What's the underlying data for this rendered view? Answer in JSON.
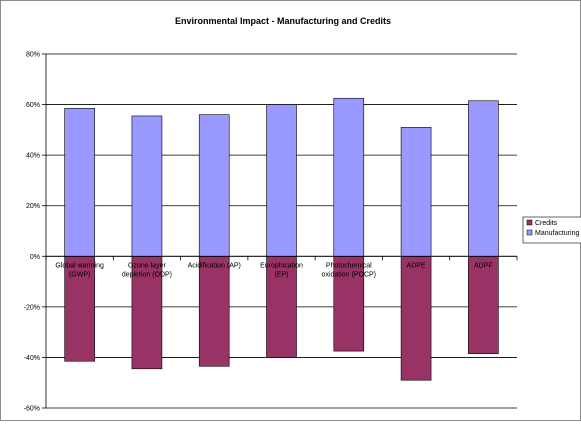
{
  "chart_data": {
    "type": "bar",
    "stacked": true,
    "title": "Environmental Impact - Manufacturing and Credits",
    "xlabel": "",
    "ylabel": "",
    "ylim": [
      -0.6,
      0.8
    ],
    "yticks": [
      -0.6,
      -0.4,
      -0.2,
      0,
      0.2,
      0.4,
      0.6,
      0.8
    ],
    "ytick_labels": [
      "-60%",
      "-40%",
      "-20%",
      "0%",
      "20%",
      "40%",
      "60%",
      "80%"
    ],
    "grid": true,
    "legend_position": "right",
    "categories": [
      [
        "Global warming",
        "(GWP)"
      ],
      [
        "Ozone layer",
        "depletion (ODP)"
      ],
      [
        "Acidification (AP)"
      ],
      [
        "Europhication",
        "(EP)"
      ],
      [
        "Photochemical",
        "oxidation (POCP)"
      ],
      [
        "ADPE"
      ],
      [
        "ADPF"
      ]
    ],
    "series": [
      {
        "name": "Credits",
        "color": "#993366",
        "values": [
          -0.415,
          -0.445,
          -0.435,
          -0.4,
          -0.375,
          -0.49,
          -0.385
        ]
      },
      {
        "name": "Manufacturing",
        "color": "#9999ff",
        "values": [
          0.585,
          0.555,
          0.56,
          0.6,
          0.625,
          0.51,
          0.615
        ]
      }
    ]
  }
}
